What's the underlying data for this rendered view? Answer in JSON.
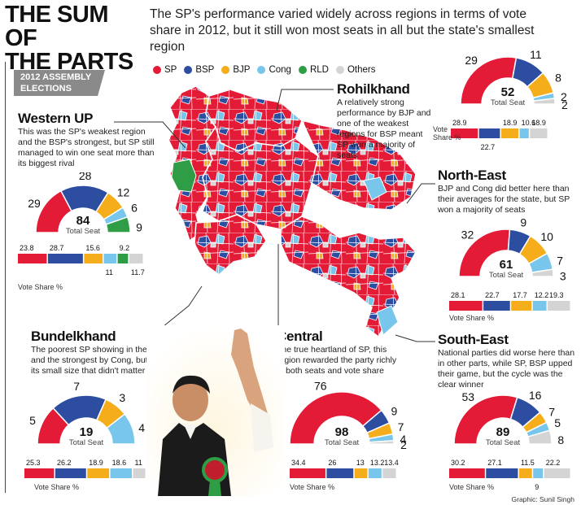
{
  "headline": [
    "THE SUM OF",
    "THE PARTS"
  ],
  "subhead": "The SP's performance varied widely across regions in terms of vote share in 2012, but it still won most seats in all but the state's smallest region",
  "tag": [
    "2012 ASSEMBLY",
    "ELECTIONS"
  ],
  "credit": "Graphic: Sunil Singh",
  "colors": {
    "SP": "#e31b37",
    "BSP": "#2c4da0",
    "BJP": "#f6ad1b",
    "Cong": "#79c6ec",
    "RLD": "#2e9d45",
    "Others": "#d4d4d4"
  },
  "legend": [
    {
      "label": "SP",
      "color": "#e31b37"
    },
    {
      "label": "BSP",
      "color": "#2c4da0"
    },
    {
      "label": "BJP",
      "color": "#f6ad1b"
    },
    {
      "label": "Cong",
      "color": "#79c6ec"
    },
    {
      "label": "RLD",
      "color": "#2e9d45"
    },
    {
      "label": "Others",
      "color": "#d4d4d4"
    }
  ],
  "total_seat_label": "Total Seat",
  "vote_share_label": "Vote Share %",
  "vote_label_split": [
    "Vote",
    "Share %"
  ],
  "regions": {
    "western": {
      "title": "Western UP",
      "desc": "This was the SP's weakest region and the BSP's strongest, but SP still managed to win one seat more than its biggest rival"
    },
    "rohilkhand": {
      "title": "Rohilkhand",
      "desc": "A relatively strong performance by BJP and one of the weakest regions for BSP meant SP won a majority of seats"
    },
    "northeast": {
      "title": "North-East",
      "desc": "BJP and Cong did better here than their averages for the state, but SP won a majority of seats"
    },
    "bundelkhand": {
      "title": "Bundelkhand",
      "desc": "The poorest SP showing in the state and the strongest by Cong, but given its small size that didn't matter much"
    },
    "central": {
      "title": "Central",
      "desc": "The true heartland of SP, this region rewarded the party richly in both seats and vote share"
    },
    "southeast": {
      "title": "South-East",
      "desc": "National parties did worse here than in other parts, while SP, BSP upped their game, but the cycle was the clear winner"
    }
  },
  "chart_data": [
    {
      "type": "pie",
      "region": "Western UP",
      "total": "84",
      "parties": [
        "SP",
        "BSP",
        "BJP",
        "Cong",
        "RLD"
      ],
      "seats": [
        29,
        28,
        12,
        6,
        9
      ],
      "vote_share_parties": [
        "SP",
        "BSP",
        "BJP",
        "Cong",
        "RLD",
        "Others"
      ],
      "vote_share": [
        23.8,
        28.7,
        15.6,
        11,
        9.2,
        11.7
      ]
    },
    {
      "type": "pie",
      "region": "Rohilkhand",
      "total": "52",
      "parties": [
        "SP",
        "BSP",
        "BJP",
        "Cong",
        "Others"
      ],
      "seats": [
        29,
        11,
        8,
        2,
        2
      ],
      "vote_share_parties": [
        "SP",
        "BSP",
        "BJP",
        "Cong",
        "Others"
      ],
      "vote_share": [
        28.9,
        22.7,
        18.9,
        10.6,
        18.9
      ]
    },
    {
      "type": "pie",
      "region": "North-East",
      "total": "61",
      "parties": [
        "SP",
        "BSP",
        "BJP",
        "Cong",
        "Others"
      ],
      "seats": [
        32,
        9,
        10,
        7,
        3
      ],
      "vote_share_parties": [
        "SP",
        "BSP",
        "BJP",
        "Cong",
        "Others"
      ],
      "vote_share": [
        28.1,
        22.7,
        17.7,
        12.2,
        19.3
      ]
    },
    {
      "type": "pie",
      "region": "Bundelkhand",
      "total": "19",
      "parties": [
        "SP",
        "BSP",
        "BJP",
        "Cong"
      ],
      "seats": [
        5,
        7,
        3,
        4
      ],
      "vote_share_parties": [
        "SP",
        "BSP",
        "BJP",
        "Cong",
        "Others"
      ],
      "vote_share": [
        25.3,
        26.2,
        18.9,
        18.6,
        11
      ]
    },
    {
      "type": "pie",
      "region": "Central",
      "total": "98",
      "parties": [
        "SP",
        "BSP",
        "BJP",
        "Cong",
        "Others"
      ],
      "seats": [
        76,
        9,
        7,
        4,
        2
      ],
      "vote_share_parties": [
        "SP",
        "BSP",
        "BJP",
        "Cong",
        "Others"
      ],
      "vote_share": [
        34.4,
        26,
        13,
        13.2,
        13.4
      ]
    },
    {
      "type": "pie",
      "region": "South-East",
      "total": "89",
      "parties": [
        "SP",
        "BSP",
        "BJP",
        "Cong",
        "Others"
      ],
      "seats": [
        53,
        16,
        7,
        5,
        8
      ],
      "vote_share_parties": [
        "SP",
        "BSP",
        "BJP",
        "Cong",
        "Others"
      ],
      "vote_share": [
        30.2,
        27.1,
        11.5,
        9,
        22.2
      ]
    }
  ]
}
